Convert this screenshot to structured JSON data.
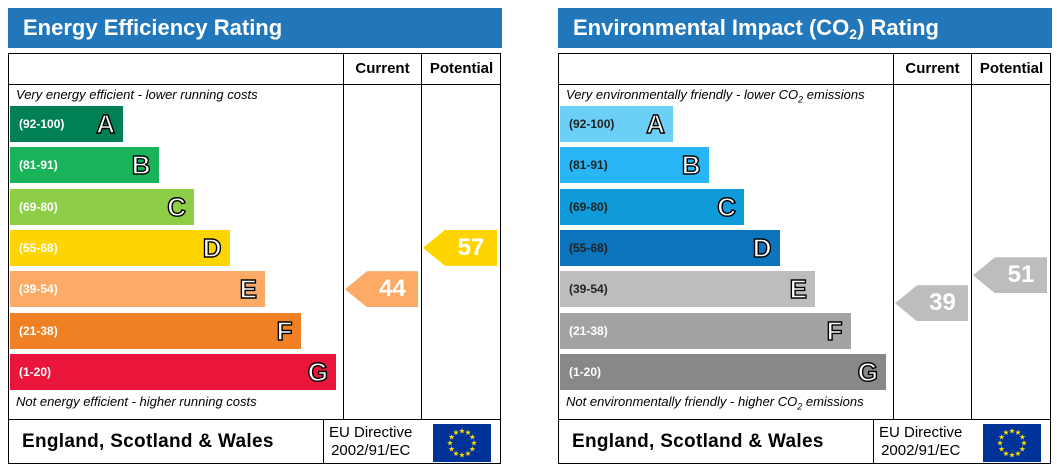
{
  "panels": [
    {
      "title_main": "Energy Efficiency Rating",
      "title_sub": "",
      "title_tail": "",
      "col_current": "Current",
      "col_potential": "Potential",
      "top_caption_pre": "Very energy efficient - lower running costs",
      "top_caption_sub": "",
      "top_caption_post": "",
      "bottom_caption_pre": "Not energy efficient - higher running costs",
      "bottom_caption_sub": "",
      "bottom_caption_post": "",
      "region": "England, Scotland & Wales",
      "directive_line1": "EU Directive",
      "directive_line2": "2002/91/EC"
    },
    {
      "title_main": "Environmental Impact (CO",
      "title_sub": "2",
      "title_tail": ") Rating",
      "col_current": "Current",
      "col_potential": "Potential",
      "top_caption_pre": "Very environmentally friendly - lower CO",
      "top_caption_sub": "2",
      "top_caption_post": " emissions",
      "bottom_caption_pre": "Not environmentally friendly - higher CO",
      "bottom_caption_sub": "2",
      "bottom_caption_post": " emissions",
      "region": "England, Scotland & Wales",
      "directive_line1": "EU Directive",
      "directive_line2": "2002/91/EC"
    }
  ],
  "chart_data": [
    {
      "type": "bar",
      "title": "Energy Efficiency Rating",
      "categories": [
        "(92-100)",
        "(81-91)",
        "(69-80)",
        "(55-68)",
        "(39-54)",
        "(21-38)",
        "(1-20)"
      ],
      "letters": [
        "A",
        "B",
        "C",
        "D",
        "E",
        "F",
        "G"
      ],
      "band_colors": [
        "#008054",
        "#19b459",
        "#8dce46",
        "#ffd500",
        "#fcaa65",
        "#ef8023",
        "#e9153b"
      ],
      "current": {
        "value": 44,
        "band": "E",
        "color": "#fcaa65"
      },
      "potential": {
        "value": 57,
        "band": "D",
        "color": "#ffd500"
      }
    },
    {
      "type": "bar",
      "title": "Environmental Impact (CO2) Rating",
      "categories": [
        "(92-100)",
        "(81-91)",
        "(69-80)",
        "(55-68)",
        "(39-54)",
        "(21-38)",
        "(1-20)"
      ],
      "letters": [
        "A",
        "B",
        "C",
        "D",
        "E",
        "F",
        "G"
      ],
      "band_colors": [
        "#6ccff6",
        "#29b6f6",
        "#0f9bd9",
        "#0b74bc",
        "#bdbdbd",
        "#a3a3a3",
        "#888888"
      ],
      "range_text_colors": [
        "#222222",
        "#222222",
        "#222222",
        "#222222",
        "#222222",
        "#ffffff",
        "#ffffff"
      ],
      "current": {
        "value": 39,
        "band": "E",
        "color": "#bdbdbd"
      },
      "potential": {
        "value": 51,
        "band": "E",
        "color": "#bdbdbd"
      }
    }
  ]
}
